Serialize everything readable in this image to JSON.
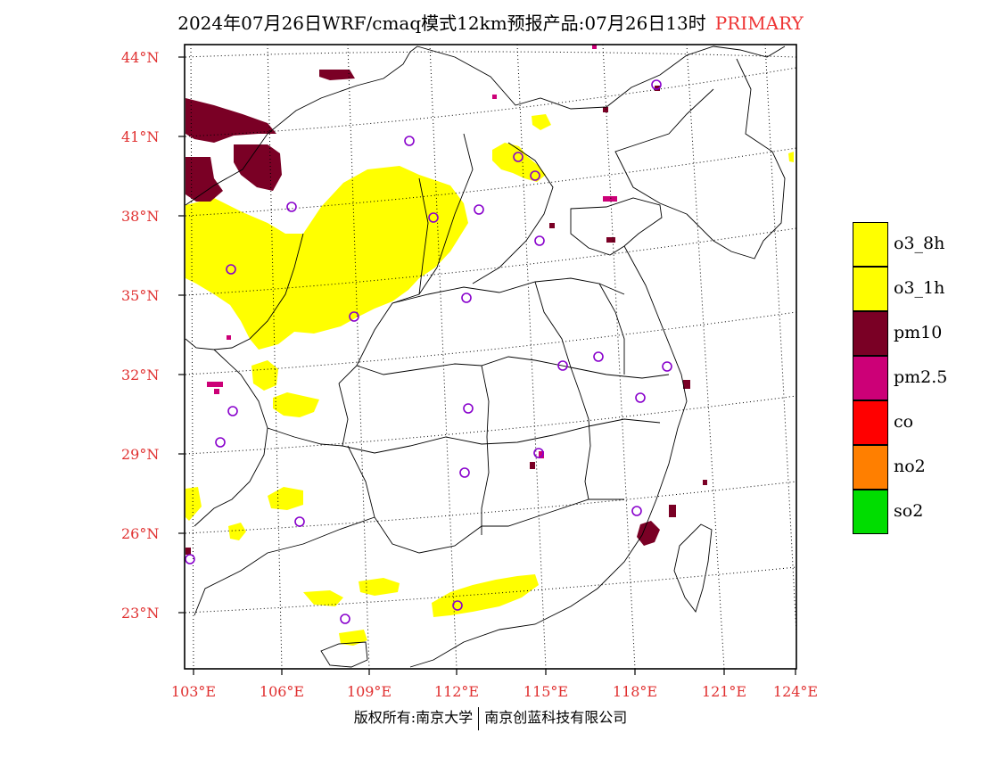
{
  "title": {
    "main": "2024年07月26日WRF/cmaq模式12km预报产品:07月26日13时",
    "tag": "PRIMARY"
  },
  "lat_labels": [
    "44°N",
    "41°N",
    "38°N",
    "35°N",
    "32°N",
    "29°N",
    "26°N",
    "23°N"
  ],
  "lon_labels": [
    "103°E",
    "106°E",
    "109°E",
    "112°E",
    "115°E",
    "118°E",
    "121°E",
    "124°E"
  ],
  "legend": [
    {
      "label": "o3_8h",
      "color": "#ffff00"
    },
    {
      "label": "o3_1h",
      "color": "#ffff00"
    },
    {
      "label": "pm10",
      "color": "#7a0025"
    },
    {
      "label": "pm2.5",
      "color": "#cc0077"
    },
    {
      "label": "co",
      "color": "#ff0000"
    },
    {
      "label": "no2",
      "color": "#ff7f00"
    },
    {
      "label": "so2",
      "color": "#00dd00"
    }
  ],
  "copyright": {
    "left": "版权所有:南京大学",
    "right": "南京创蓝科技有限公司"
  },
  "colors": {
    "o3": "#ffff00",
    "pm10": "#7a0025",
    "pm25": "#cc0077",
    "station": "#8800cc",
    "axis_label": "#e03030"
  }
}
